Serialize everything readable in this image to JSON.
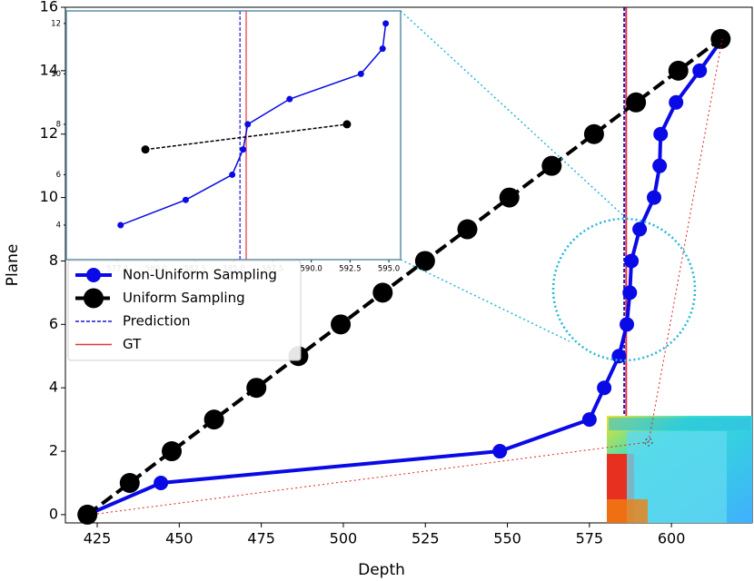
{
  "chart_data": [
    {
      "type": "line",
      "xlabel": "Depth",
      "ylabel": "Plane",
      "xlim": [
        415.3,
        624.6
      ],
      "ylim": [
        -0.26,
        16
      ],
      "xticks": [
        425,
        450,
        475,
        500,
        525,
        550,
        575,
        600
      ],
      "yticks": [
        0,
        2,
        4,
        6,
        8,
        10,
        12,
        14,
        16
      ],
      "legend": "center left",
      "series": [
        {
          "name": "Non-Uniform Sampling",
          "color": "#0a0ae6",
          "style": "solid",
          "x": [
            422,
            444.4,
            547.7,
            575,
            579.5,
            584,
            586.4,
            587.3,
            587.8,
            590.3,
            594.7,
            596.4,
            596.7,
            601.4,
            608.6,
            615.5
          ],
          "values": [
            0,
            1,
            2,
            3,
            4,
            5,
            6,
            7,
            8,
            9,
            10,
            11,
            12,
            13,
            14,
            15
          ]
        },
        {
          "name": "Uniform Sampling",
          "color": "#000000",
          "style": "dashed",
          "x": [
            422,
            434.9,
            447.7,
            460.6,
            473.5,
            486.3,
            499.2,
            512,
            524.9,
            537.8,
            550.6,
            563.5,
            576.4,
            589.2,
            602.1,
            615
          ],
          "values": [
            0,
            1,
            2,
            3,
            4,
            5,
            6,
            7,
            8,
            9,
            10,
            11,
            12,
            13,
            14,
            15
          ]
        }
      ],
      "vlines": [
        {
          "name": "Prediction",
          "value": 585.6,
          "color": "#1a1acc",
          "style": "dashed"
        },
        {
          "name": "GT",
          "value": 586.2,
          "color": "#e8323c",
          "style": "solid"
        }
      ]
    },
    {
      "type": "line",
      "xlim": [
        574.2,
        595.76
      ],
      "ylim": [
        2.63,
        12.5
      ],
      "xticks": [
        577.5,
        {
          "value": 580,
          "label": "580.0"
        },
        582.5,
        {
          "value": 585,
          "label": "585.0"
        },
        587.5,
        {
          "value": 590,
          "label": "590.0"
        },
        592.5,
        {
          "value": 595,
          "label": "595.0"
        }
      ],
      "yticks": [
        4,
        6,
        8,
        10,
        12
      ],
      "series": [
        {
          "color": "#0a0ae6",
          "style": "solid",
          "x": [
            577.7,
            581.9,
            584.9,
            585.6,
            585.9,
            588.6,
            593.2,
            594.6,
            594.8
          ],
          "values": [
            4,
            5,
            6,
            7,
            8,
            9,
            10,
            11,
            12
          ]
        },
        {
          "color": "#000000",
          "style": "dashed",
          "x": [
            579.3,
            592.3
          ],
          "values": [
            7,
            8
          ]
        }
      ],
      "vlines": [
        {
          "value": 585.4,
          "color": "#1a1acc",
          "style": "dashed"
        },
        {
          "value": 585.8,
          "color": "#e8323c",
          "style": "solid"
        }
      ]
    }
  ]
}
